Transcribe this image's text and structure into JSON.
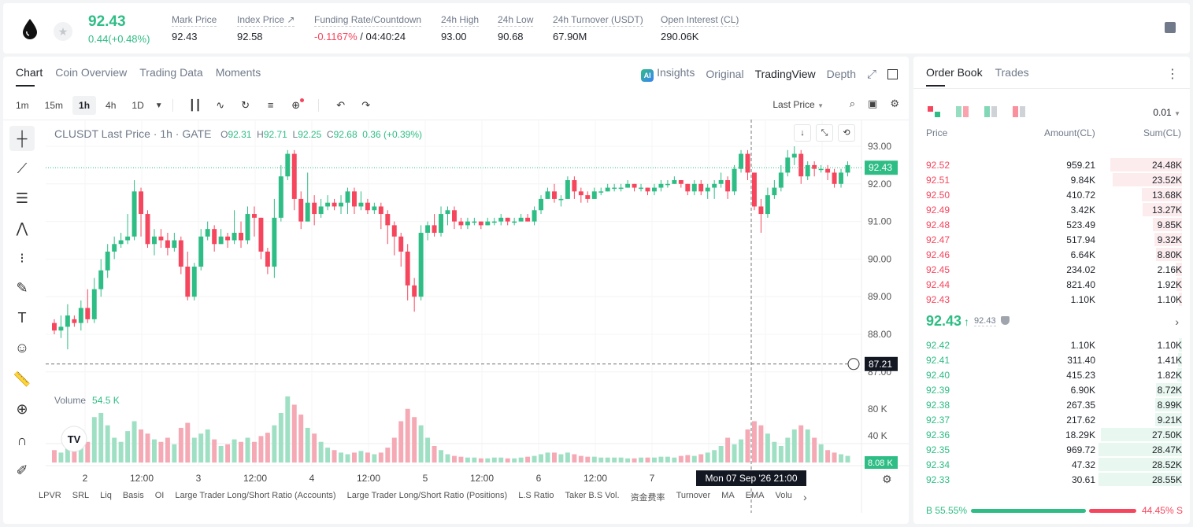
{
  "ticker": {
    "last_price": "92.43",
    "change": "0.44(+0.48%)",
    "stats": [
      {
        "label": "Mark Price",
        "value": "92.43"
      },
      {
        "label": "Index Price ↗",
        "value": "92.58"
      },
      {
        "label": "Funding Rate/Countdown",
        "value_neg": "-0.1167%",
        "value": " / 04:40:24"
      },
      {
        "label": "24h High",
        "value": "93.00"
      },
      {
        "label": "24h Low",
        "value": "90.68"
      },
      {
        "label": "24h Turnover (USDT)",
        "value": "67.90M"
      },
      {
        "label": "Open Interest (CL)",
        "value": "290.06K"
      }
    ]
  },
  "chart_tabs": [
    "Chart",
    "Coin Overview",
    "Trading Data",
    "Moments"
  ],
  "view_tabs": {
    "insights": "Insights",
    "ai": "AI",
    "original": "Original",
    "tradingview": "TradingView",
    "depth": "Depth"
  },
  "timeframes": [
    "1m",
    "15m",
    "1h",
    "4h",
    "1D"
  ],
  "last_price_select": "Last Price",
  "legend": {
    "symbol": "CLUSDT Last Price · 1h · GATE",
    "o_label": "O",
    "o": "92.31",
    "h_label": "H",
    "h": "92.71",
    "l_label": "L",
    "l": "92.25",
    "c_label": "C",
    "c": "92.68",
    "chg": "0.36 (+0.39%)"
  },
  "volume_legend": {
    "label": "Volume",
    "value": "54.5 K"
  },
  "chart_data": {
    "type": "candlestick",
    "price_axis": [
      "93.00",
      "92.00",
      "91.00",
      "90.00",
      "89.00",
      "88.00",
      "87.00"
    ],
    "volume_axis": [
      "80 K",
      "40 K"
    ],
    "x_labels": [
      "2",
      "12:00",
      "3",
      "12:00",
      "4",
      "12:00",
      "5",
      "12:00",
      "6",
      "12:00",
      "7",
      "12:00"
    ],
    "last_price_label": "92.43",
    "crosshair_price": "87.21",
    "crosshair_time": "Mon 07 Sep '26   21:00",
    "last_volume_label": "8.08 K",
    "candles": [
      [
        88.3,
        88.1,
        88.4,
        88.0
      ],
      [
        88.1,
        88.2,
        88.5,
        87.9
      ],
      [
        88.2,
        88.5,
        88.8,
        87.6
      ],
      [
        88.4,
        88.3,
        88.5,
        88.2
      ],
      [
        88.3,
        88.7,
        88.9,
        88.1
      ],
      [
        88.7,
        88.4,
        89.2,
        88.3
      ],
      [
        88.4,
        89.2,
        89.5,
        88.3
      ],
      [
        89.2,
        89.7,
        90.0,
        89.0
      ],
      [
        89.7,
        90.2,
        90.4,
        89.5
      ],
      [
        90.2,
        90.4,
        90.6,
        90.0
      ],
      [
        90.4,
        90.5,
        90.7,
        90.3
      ],
      [
        90.5,
        90.6,
        91.2,
        90.4
      ],
      [
        90.6,
        91.8,
        92.1,
        90.5
      ],
      [
        91.8,
        91.2,
        91.9,
        90.6
      ],
      [
        91.2,
        90.4,
        91.3,
        90.3
      ],
      [
        90.4,
        90.6,
        90.8,
        90.1
      ],
      [
        90.6,
        90.5,
        90.8,
        90.3
      ],
      [
        90.5,
        90.3,
        90.7,
        90.1
      ],
      [
        90.3,
        90.5,
        90.7,
        90.2
      ],
      [
        90.5,
        89.8,
        90.6,
        89.6
      ],
      [
        89.8,
        89.0,
        90.2,
        88.9
      ],
      [
        89.0,
        89.8,
        89.9,
        88.9
      ],
      [
        89.8,
        90.6,
        90.8,
        89.7
      ],
      [
        90.6,
        90.8,
        91.0,
        90.5
      ],
      [
        90.8,
        90.4,
        90.9,
        90.2
      ],
      [
        90.4,
        90.6,
        90.8,
        90.4
      ],
      [
        90.6,
        90.5,
        90.7,
        90.3
      ],
      [
        90.5,
        90.7,
        91.3,
        90.4
      ],
      [
        90.7,
        90.5,
        91.0,
        90.3
      ],
      [
        90.5,
        91.2,
        91.4,
        90.4
      ],
      [
        91.2,
        91.1,
        91.4,
        90.6
      ],
      [
        91.1,
        90.2,
        91.1,
        90.0
      ],
      [
        90.2,
        89.8,
        90.3,
        89.6
      ],
      [
        89.8,
        91.1,
        91.6,
        89.5
      ],
      [
        91.1,
        92.2,
        92.5,
        91.0
      ],
      [
        92.2,
        92.8,
        92.9,
        92.1
      ],
      [
        92.8,
        91.6,
        92.9,
        91.3
      ],
      [
        91.6,
        91.0,
        91.8,
        90.8
      ],
      [
        91.0,
        91.5,
        92.3,
        91.0
      ],
      [
        91.5,
        91.2,
        91.7,
        90.9
      ],
      [
        91.2,
        91.4,
        91.6,
        91.1
      ],
      [
        91.4,
        91.5,
        91.7,
        91.3
      ],
      [
        91.5,
        91.4,
        91.6,
        91.3
      ],
      [
        91.4,
        91.5,
        91.7,
        91.2
      ],
      [
        91.5,
        91.8,
        91.9,
        91.2
      ],
      [
        91.8,
        91.4,
        91.9,
        91.2
      ],
      [
        91.4,
        91.5,
        91.8,
        91.3
      ],
      [
        91.5,
        91.3,
        91.6,
        91.2
      ],
      [
        91.3,
        91.4,
        91.5,
        91.2
      ],
      [
        91.4,
        91.2,
        91.5,
        90.8
      ],
      [
        91.2,
        90.9,
        91.3,
        90.4
      ],
      [
        90.9,
        90.6,
        91.0,
        90.1
      ],
      [
        90.6,
        90.2,
        90.7,
        89.8
      ],
      [
        90.2,
        89.3,
        90.4,
        88.9
      ],
      [
        89.3,
        89.0,
        89.5,
        88.6
      ],
      [
        89.0,
        90.7,
        90.9,
        88.9
      ],
      [
        90.7,
        90.9,
        91.0,
        90.5
      ],
      [
        90.9,
        90.7,
        91.2,
        90.6
      ],
      [
        90.7,
        91.2,
        91.4,
        90.6
      ],
      [
        91.2,
        91.3,
        91.4,
        90.9
      ],
      [
        91.3,
        91.0,
        91.4,
        90.8
      ],
      [
        91.0,
        90.9,
        91.1,
        90.8
      ],
      [
        90.9,
        91.0,
        91.1,
        90.8
      ],
      [
        91.0,
        91.0,
        91.1,
        90.9
      ],
      [
        91.0,
        90.9,
        91.0,
        90.8
      ],
      [
        90.9,
        91.0,
        91.1,
        90.9
      ],
      [
        91.0,
        91.0,
        91.1,
        90.9
      ],
      [
        91.0,
        91.1,
        91.2,
        90.9
      ],
      [
        91.1,
        91.0,
        91.1,
        90.9
      ],
      [
        91.0,
        91.0,
        91.1,
        90.9
      ],
      [
        91.0,
        91.1,
        91.2,
        91.0
      ],
      [
        91.1,
        91.0,
        91.2,
        91.0
      ],
      [
        91.0,
        91.3,
        91.4,
        90.9
      ],
      [
        91.3,
        91.6,
        91.7,
        91.2
      ],
      [
        91.6,
        91.8,
        91.9,
        91.6
      ],
      [
        91.8,
        91.6,
        92.0,
        91.5
      ],
      [
        91.6,
        91.6,
        91.7,
        91.4
      ],
      [
        91.6,
        92.1,
        92.2,
        91.6
      ],
      [
        92.1,
        91.8,
        92.2,
        91.6
      ],
      [
        91.8,
        91.7,
        91.9,
        91.5
      ],
      [
        91.7,
        91.6,
        91.8,
        91.5
      ],
      [
        91.6,
        91.8,
        91.9,
        91.6
      ],
      [
        91.8,
        91.8,
        91.9,
        91.7
      ],
      [
        91.8,
        91.9,
        92.0,
        91.8
      ],
      [
        91.9,
        91.9,
        92.0,
        91.8
      ],
      [
        91.9,
        91.9,
        92.0,
        91.8
      ],
      [
        91.9,
        92.0,
        92.1,
        91.9
      ],
      [
        92.0,
        91.9,
        92.0,
        91.8
      ],
      [
        91.9,
        91.9,
        92.0,
        91.8
      ],
      [
        91.9,
        91.8,
        91.9,
        91.7
      ],
      [
        91.8,
        91.9,
        92.0,
        91.7
      ],
      [
        91.9,
        92.0,
        92.1,
        91.8
      ],
      [
        92.0,
        92.0,
        92.1,
        91.9
      ],
      [
        92.0,
        92.1,
        92.2,
        92.0
      ],
      [
        92.1,
        92.0,
        92.1,
        91.9
      ],
      [
        92.0,
        91.8,
        92.0,
        91.7
      ],
      [
        91.8,
        92.0,
        92.1,
        91.7
      ],
      [
        92.0,
        91.8,
        92.1,
        91.7
      ],
      [
        91.8,
        91.9,
        92.0,
        91.6
      ],
      [
        91.9,
        92.0,
        92.1,
        91.6
      ],
      [
        92.0,
        92.1,
        92.3,
        91.9
      ],
      [
        92.1,
        91.8,
        92.2,
        91.6
      ],
      [
        91.8,
        92.4,
        92.5,
        91.7
      ],
      [
        92.4,
        92.8,
        92.9,
        92.3
      ],
      [
        92.8,
        92.3,
        92.9,
        92.1
      ],
      [
        92.3,
        91.4,
        92.3,
        91.3
      ],
      [
        91.4,
        91.2,
        91.6,
        90.7
      ],
      [
        91.2,
        91.7,
        91.9,
        91.1
      ],
      [
        91.7,
        91.9,
        92.1,
        91.6
      ],
      [
        91.9,
        92.3,
        92.5,
        91.8
      ],
      [
        92.3,
        92.7,
        92.9,
        92.2
      ],
      [
        92.7,
        92.8,
        93.0,
        92.5
      ],
      [
        92.8,
        92.2,
        92.9,
        92.0
      ],
      [
        92.2,
        92.5,
        92.6,
        92.1
      ],
      [
        92.5,
        92.4,
        92.6,
        92.2
      ],
      [
        92.4,
        92.4,
        92.5,
        92.3
      ],
      [
        92.4,
        92.3,
        92.5,
        92.1
      ],
      [
        92.3,
        92.0,
        92.4,
        91.9
      ],
      [
        92.0,
        92.3,
        92.4,
        91.9
      ],
      [
        92.3,
        92.5,
        92.6,
        92.2
      ]
    ],
    "volumes": [
      15,
      12,
      20,
      22,
      40,
      25,
      55,
      60,
      45,
      30,
      25,
      38,
      50,
      40,
      35,
      28,
      25,
      30,
      22,
      42,
      48,
      30,
      35,
      40,
      28,
      20,
      22,
      28,
      25,
      30,
      25,
      32,
      36,
      45,
      60,
      80,
      70,
      58,
      42,
      35,
      25,
      18,
      15,
      12,
      10,
      12,
      14,
      12,
      10,
      12,
      18,
      30,
      50,
      65,
      55,
      45,
      30,
      20,
      15,
      10,
      8,
      7,
      6,
      6,
      5,
      5,
      6,
      6,
      5,
      5,
      6,
      7,
      8,
      10,
      12,
      12,
      10,
      12,
      10,
      8,
      7,
      7,
      6,
      6,
      6,
      6,
      5,
      5,
      6,
      6,
      6,
      7,
      7,
      6,
      8,
      9,
      8,
      10,
      12,
      15,
      20,
      30,
      22,
      28,
      40,
      50,
      45,
      35,
      25,
      20,
      30,
      40,
      45,
      40,
      30,
      22,
      15,
      12,
      10,
      8
    ]
  },
  "indicators": [
    "LPVR",
    "SRL",
    "Liq",
    "Basis",
    "OI",
    "Large Trader Long/Short Ratio (Accounts)",
    "Large Trader Long/Short Ratio (Positions)",
    "L.S Ratio",
    "Taker B.S Vol.",
    "资金费率",
    "Turnover",
    "MA",
    "EMA",
    "Volu"
  ],
  "orderbook": {
    "tabs": [
      "Order Book",
      "Trades"
    ],
    "precision": "0.01",
    "headers": {
      "price": "Price",
      "amount": "Amount(CL)",
      "sum": "Sum(CL)"
    },
    "asks": [
      {
        "price": "92.52",
        "amount": "959.21",
        "sum": "24.48K",
        "depth": 0.86
      },
      {
        "price": "92.51",
        "amount": "9.84K",
        "sum": "23.52K",
        "depth": 0.83
      },
      {
        "price": "92.50",
        "amount": "410.72",
        "sum": "13.68K",
        "depth": 0.48
      },
      {
        "price": "92.49",
        "amount": "3.42K",
        "sum": "13.27K",
        "depth": 0.47
      },
      {
        "price": "92.48",
        "amount": "523.49",
        "sum": "9.85K",
        "depth": 0.35
      },
      {
        "price": "92.47",
        "amount": "517.94",
        "sum": "9.32K",
        "depth": 0.33
      },
      {
        "price": "92.46",
        "amount": "6.64K",
        "sum": "8.80K",
        "depth": 0.31
      },
      {
        "price": "92.45",
        "amount": "234.02",
        "sum": "2.16K",
        "depth": 0.08
      },
      {
        "price": "92.44",
        "amount": "821.40",
        "sum": "1.92K",
        "depth": 0.07
      },
      {
        "price": "92.43",
        "amount": "1.10K",
        "sum": "1.10K",
        "depth": 0.04
      }
    ],
    "mid_price": "92.43",
    "mid_arrow": "↑",
    "mark_price": "92.43",
    "bids": [
      {
        "price": "92.42",
        "amount": "1.10K",
        "sum": "1.10K",
        "depth": 0.04
      },
      {
        "price": "92.41",
        "amount": "311.40",
        "sum": "1.41K",
        "depth": 0.05
      },
      {
        "price": "92.40",
        "amount": "415.23",
        "sum": "1.82K",
        "depth": 0.06
      },
      {
        "price": "92.39",
        "amount": "6.90K",
        "sum": "8.72K",
        "depth": 0.31
      },
      {
        "price": "92.38",
        "amount": "267.35",
        "sum": "8.99K",
        "depth": 0.32
      },
      {
        "price": "92.37",
        "amount": "217.62",
        "sum": "9.21K",
        "depth": 0.32
      },
      {
        "price": "92.36",
        "amount": "18.29K",
        "sum": "27.50K",
        "depth": 0.97
      },
      {
        "price": "92.35",
        "amount": "969.72",
        "sum": "28.47K",
        "depth": 1.0
      },
      {
        "price": "92.34",
        "amount": "47.32",
        "sum": "28.52K",
        "depth": 1.0
      },
      {
        "price": "92.33",
        "amount": "30.61",
        "sum": "28.55K",
        "depth": 1.0
      }
    ],
    "buy_ratio": "B  55.55%",
    "sell_ratio": "44.45%  S"
  },
  "colors": {
    "up": "#2ebd85",
    "down": "#f6465d",
    "vol_up": "#9fe0c4",
    "vol_down": "#f5a9b4"
  }
}
